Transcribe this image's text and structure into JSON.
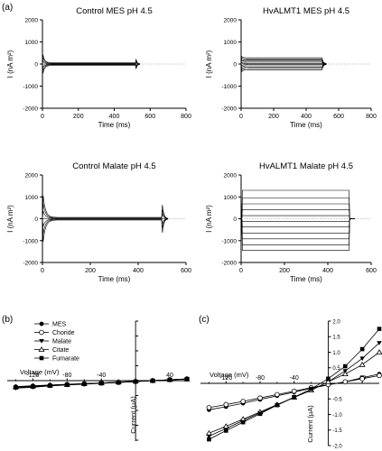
{
  "figure": {
    "panel_labels": [
      "(a)",
      "(b)",
      "(c)"
    ]
  },
  "chart_data": [
    {
      "type": "line",
      "panel": "a",
      "title": "Control MES pH 4.5",
      "xlabel": "Time (ms)",
      "ylabel": "I (nA m²)",
      "xlim": [
        0,
        800
      ],
      "ylim": [
        -2000,
        2000
      ],
      "xticks": [
        "0",
        "200",
        "400",
        "600",
        "800"
      ],
      "yticks": [
        "2000",
        "1000",
        "0",
        "-1000",
        "-2000"
      ],
      "plateau": 520,
      "steady": [
        -55,
        -30,
        -15,
        0,
        15,
        30,
        55
      ],
      "peak_on": 420,
      "peak_off": 310,
      "steps": 11
    },
    {
      "type": "line",
      "panel": "a",
      "title": "HvALMT1 MES pH 4.5",
      "xlabel": "Time (ms)",
      "ylabel": "I (nA m²)",
      "xlim": [
        0,
        800
      ],
      "ylim": [
        -2000,
        2000
      ],
      "xticks": [
        "0",
        "200",
        "400",
        "600",
        "800"
      ],
      "yticks": [
        "2000",
        "1000",
        "0",
        "-1000",
        "-2000"
      ],
      "plateau": 500,
      "steady": [
        -260,
        -200,
        -140,
        -80,
        -25,
        30,
        80,
        130,
        180,
        230,
        280
      ],
      "peak_on": 350,
      "peak_off": 180,
      "steps": 11
    },
    {
      "type": "line",
      "panel": "a",
      "title": "Control Malate pH 4.5",
      "xlabel": "Time (ms)",
      "ylabel": "I (nA m²)",
      "xlim": [
        0,
        600
      ],
      "ylim": [
        -2000,
        2000
      ],
      "xticks": [
        "0",
        "200",
        "400",
        "600"
      ],
      "yticks": [
        "2000",
        "1000",
        "0",
        "-1000",
        "-2000"
      ],
      "plateau": 500,
      "steady": [
        -60,
        -35,
        -15,
        0,
        15,
        35,
        60
      ],
      "peak_on": 1050,
      "peak_off": 750,
      "steps": 11
    },
    {
      "type": "line",
      "panel": "a",
      "title": "HvALMT1 Malate pH 4.5",
      "xlabel": "Time (ms)",
      "ylabel": "I (nA m²)",
      "xlim": [
        0,
        600
      ],
      "ylim": [
        -2000,
        2000
      ],
      "xticks": [
        "0",
        "200",
        "400",
        "600"
      ],
      "yticks": [
        "2000",
        "1000",
        "0",
        "-1000",
        "-2000"
      ],
      "plateau": 500,
      "steady": [
        -1450,
        -1200,
        -920,
        -650,
        -380,
        -120,
        140,
        420,
        680,
        950,
        1300
      ],
      "peak_on": 0,
      "peak_off": 0,
      "steps": 11
    },
    {
      "type": "line",
      "panel": "b",
      "xlabel": "Voltage (mV)",
      "ylabel": "Current (µA)",
      "xlim": [
        -150,
        60
      ],
      "ylim": [
        -2.0,
        2.0
      ],
      "xticks": [
        "-120",
        "-80",
        "-40",
        "",
        "40"
      ],
      "x": [
        -140,
        -120,
        -100,
        -80,
        -60,
        -40,
        -20,
        0,
        20,
        40,
        60
      ],
      "series": [
        {
          "name": "MES",
          "marker": "circle-filled",
          "values": [
            -0.2,
            -0.17,
            -0.15,
            -0.12,
            -0.1,
            -0.08,
            -0.05,
            -0.03,
            0.0,
            0.03,
            0.05
          ]
        },
        {
          "name": "Choride",
          "marker": "circle-open",
          "values": [
            -0.22,
            -0.19,
            -0.16,
            -0.13,
            -0.11,
            -0.08,
            -0.06,
            -0.03,
            0.0,
            0.03,
            0.06
          ]
        },
        {
          "name": "Malate",
          "marker": "triangle-down-filled",
          "values": [
            -0.25,
            -0.22,
            -0.18,
            -0.15,
            -0.12,
            -0.09,
            -0.06,
            -0.03,
            0.0,
            0.03,
            0.06
          ]
        },
        {
          "name": "Citate",
          "marker": "triangle-up-open",
          "values": [
            -0.21,
            -0.18,
            -0.15,
            -0.13,
            -0.1,
            -0.08,
            -0.05,
            -0.02,
            0.0,
            0.03,
            0.05
          ]
        },
        {
          "name": "Fumarate",
          "marker": "square-filled",
          "values": [
            -0.23,
            -0.2,
            -0.17,
            -0.14,
            -0.11,
            -0.09,
            -0.06,
            -0.03,
            0.0,
            0.03,
            0.05
          ]
        }
      ]
    },
    {
      "type": "line",
      "panel": "c",
      "xlabel": "Voltage (mV)",
      "ylabel": "Current (µA)",
      "xlim": [
        -150,
        60
      ],
      "ylim": [
        -2.0,
        2.0
      ],
      "xticks": [
        "-120",
        "-80",
        "-40",
        "",
        "40"
      ],
      "yticks": [
        "2.0",
        "1.5",
        "1.0",
        "0.5",
        "",
        "-0.5",
        "-1.0",
        "-1.5",
        "-2.0"
      ],
      "x": [
        -140,
        -120,
        -100,
        -80,
        -60,
        -40,
        -20,
        0,
        20,
        40,
        60
      ],
      "series": [
        {
          "name": "MES",
          "marker": "circle-filled",
          "values": [
            -0.85,
            -0.75,
            -0.64,
            -0.52,
            -0.4,
            -0.28,
            -0.16,
            -0.05,
            0.05,
            0.18,
            0.3
          ]
        },
        {
          "name": "Choride",
          "marker": "circle-open",
          "values": [
            -0.78,
            -0.68,
            -0.58,
            -0.47,
            -0.36,
            -0.25,
            -0.14,
            -0.04,
            0.05,
            0.15,
            0.25
          ]
        },
        {
          "name": "Malate",
          "marker": "triangle-down-filled",
          "values": [
            -1.7,
            -1.45,
            -1.2,
            -0.95,
            -0.7,
            -0.45,
            -0.22,
            0.05,
            0.4,
            0.8,
            1.3
          ]
        },
        {
          "name": "Citate",
          "marker": "triangle-up-open",
          "values": [
            -1.6,
            -1.38,
            -1.15,
            -0.92,
            -0.68,
            -0.45,
            -0.22,
            0.05,
            0.3,
            0.6,
            1.0
          ]
        },
        {
          "name": "Fumarate",
          "marker": "square-filled",
          "values": [
            -1.8,
            -1.52,
            -1.25,
            -0.98,
            -0.7,
            -0.44,
            -0.18,
            0.15,
            0.55,
            1.1,
            1.75
          ]
        }
      ]
    }
  ]
}
